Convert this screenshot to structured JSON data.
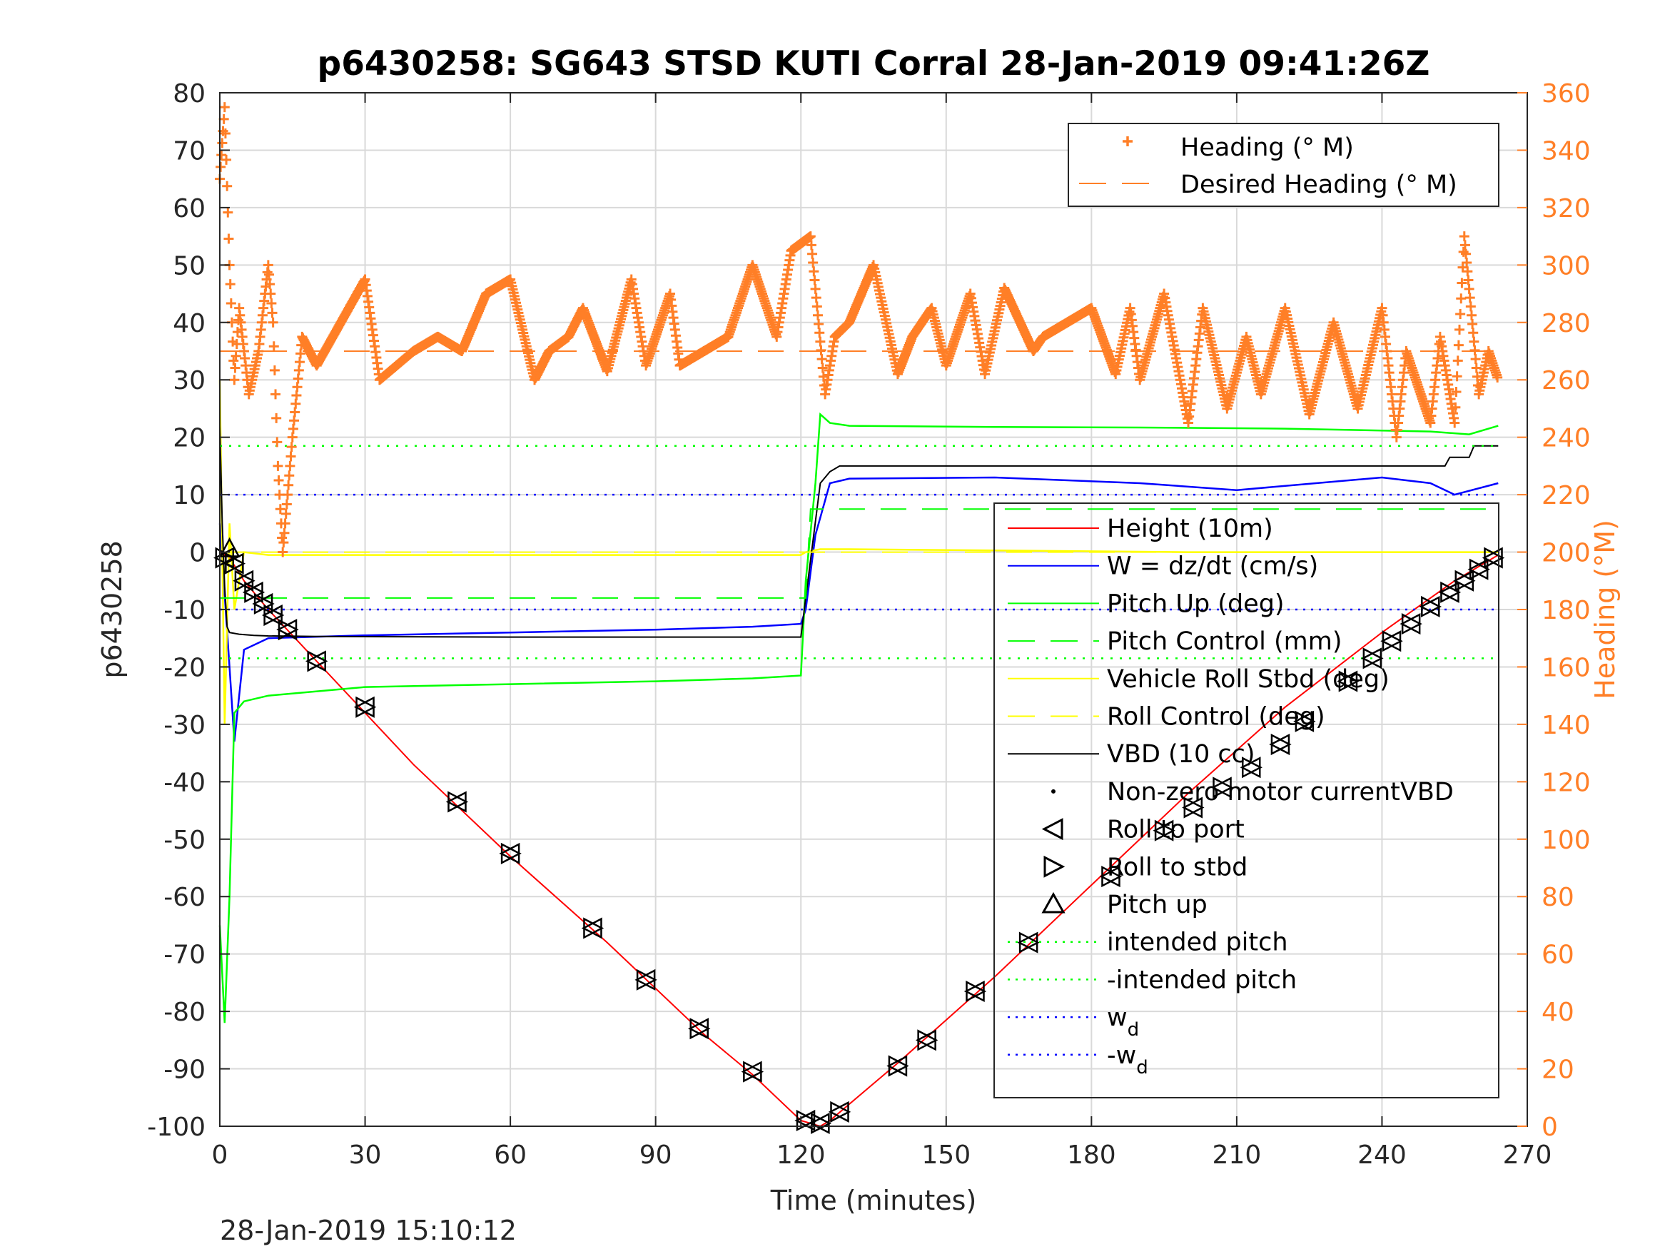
{
  "chart_data": {
    "type": "line",
    "title": "p6430258: SG643 STSD KUTI Corral 28-Jan-2019 09:41:26Z",
    "xlabel": "Time (minutes)",
    "ylabel": "p6430258",
    "y2label": "Heading (°M)",
    "footer": "28-Jan-2019 15:10:12",
    "xlim": [
      0,
      270
    ],
    "ylim": [
      -100,
      80
    ],
    "y2lim": [
      0,
      360
    ],
    "grid": true,
    "xticks": [
      "0",
      "30",
      "60",
      "90",
      "120",
      "150",
      "180",
      "210",
      "240",
      "270"
    ],
    "yticks": [
      "80",
      "70",
      "60",
      "50",
      "40",
      "30",
      "20",
      "10",
      "0",
      "-10",
      "-20",
      "-30",
      "-40",
      "-50",
      "-60",
      "-70",
      "-80",
      "-90",
      "-100"
    ],
    "y2ticks": [
      "360",
      "340",
      "320",
      "300",
      "280",
      "260",
      "240",
      "220",
      "200",
      "180",
      "160",
      "140",
      "120",
      "100",
      "80",
      "60",
      "40",
      "20",
      "0"
    ],
    "colors": {
      "heading": "#ff7f27",
      "height": "#ff0000",
      "w": "#0000ff",
      "pitch": "#00ff00",
      "roll": "#ffff00",
      "vbd": "#000000",
      "marker": "#000000",
      "grid": "#d9d9d9"
    },
    "legend_top": {
      "placement": "top-right",
      "entries": [
        "Heading (° M)",
        "Desired Heading (° M)"
      ]
    },
    "legend_main": {
      "placement": "right",
      "entries": [
        {
          "label": "Height (10m)"
        },
        {
          "label": "W = dz/dt (cm/s)"
        },
        {
          "label": "Pitch Up (deg)"
        },
        {
          "label": "Pitch Control (mm)"
        },
        {
          "label": "Vehicle Roll Stbd (deg)"
        },
        {
          "label": "Roll Control (deg)"
        },
        {
          "label": "VBD (10 cc)"
        },
        {
          "label": "Non-zero motor currentVBD"
        },
        {
          "label": "Roll to port"
        },
        {
          "label": "Roll to stbd"
        },
        {
          "label": "Pitch up"
        },
        {
          "label": "intended pitch"
        },
        {
          "label": "-intended pitch"
        },
        {
          "label": "w",
          "sub": "d"
        },
        {
          "label": "-w",
          "sub": "d"
        }
      ]
    },
    "series": [
      {
        "name": "Height (10m)",
        "x": [
          0,
          2,
          5,
          10,
          20,
          40,
          60,
          80,
          100,
          110,
          120,
          122,
          124,
          126,
          140,
          160,
          180,
          200,
          220,
          240,
          255,
          264
        ],
        "y": [
          0,
          -1,
          -5,
          -10,
          -19,
          -37,
          -53,
          -68,
          -84,
          -91,
          -99,
          -99.5,
          -100,
          -99,
          -89,
          -74,
          -58,
          -42,
          -27,
          -14,
          -5,
          -0.5
        ]
      },
      {
        "name": "W = dz/dt (cm/s)",
        "x": [
          0,
          2,
          3,
          5,
          10,
          30,
          60,
          90,
          110,
          120,
          121,
          123,
          126,
          130,
          160,
          190,
          210,
          240,
          250,
          255,
          264
        ],
        "y": [
          5,
          -20,
          -33,
          -17,
          -15,
          -14.5,
          -14,
          -13.5,
          -13,
          -12.5,
          -10,
          3,
          12,
          12.8,
          13,
          12,
          10.8,
          13,
          12,
          10,
          12
        ]
      },
      {
        "name": "Pitch Up (deg)",
        "x": [
          0,
          1,
          2,
          3,
          5,
          10,
          30,
          60,
          90,
          110,
          120,
          121,
          123,
          124,
          126,
          130,
          160,
          190,
          220,
          250,
          258,
          264
        ],
        "y": [
          -65,
          -82,
          -60,
          -28,
          -26,
          -25,
          -23.5,
          -23,
          -22.5,
          -22,
          -21.5,
          -5,
          12,
          24,
          22.5,
          22,
          21.8,
          21.7,
          21.5,
          21,
          20.5,
          22
        ]
      },
      {
        "name": "Vehicle Roll Stbd (deg)",
        "x": [
          0,
          1,
          2,
          3,
          5,
          10,
          60,
          120,
          121,
          124,
          130,
          200,
          264
        ],
        "y": [
          30,
          -30,
          5,
          -10,
          0,
          -0.5,
          -0.5,
          -0.5,
          0,
          0.5,
          0.5,
          0,
          0
        ]
      },
      {
        "name": "VBD (10 cc)",
        "x": [
          0,
          0.5,
          1,
          1.5,
          2,
          4,
          7,
          10,
          20,
          60,
          110,
          120,
          121,
          124,
          126,
          128,
          150,
          200,
          253,
          254,
          258,
          259,
          264
        ],
        "y": [
          22,
          5,
          -6,
          -13,
          -14,
          -14.3,
          -14.5,
          -14.6,
          -14.7,
          -14.8,
          -14.8,
          -14.8,
          -8,
          12,
          14,
          15,
          15,
          15,
          15,
          16.5,
          16.5,
          18.5,
          18.5
        ]
      },
      {
        "name": "Pitch Control (mm)",
        "x": [
          0,
          121,
          122,
          264
        ],
        "y": [
          -8,
          -8,
          7.5,
          7.5
        ]
      },
      {
        "name": "Roll Control (deg)",
        "x": [
          0,
          264
        ],
        "y": [
          0,
          0
        ]
      },
      {
        "name": "intended pitch",
        "x": [
          0,
          264
        ],
        "y": [
          18.5,
          18.5
        ]
      },
      {
        "name": "-intended pitch",
        "x": [
          0,
          264
        ],
        "y": [
          -18.5,
          -18.5
        ]
      },
      {
        "name": "w_d",
        "x": [
          0,
          264
        ],
        "y": [
          10,
          10
        ]
      },
      {
        "name": "-w_d",
        "x": [
          0,
          264
        ],
        "y": [
          -10,
          -10
        ]
      },
      {
        "name": "Desired Heading (° M)",
        "x": [
          0,
          264
        ],
        "y2": [
          270,
          270
        ]
      },
      {
        "name": "Heading (° M)",
        "x": [
          0,
          1,
          2,
          3,
          4,
          6,
          8,
          10,
          11,
          12,
          13,
          15,
          17,
          20,
          25,
          30,
          33,
          40,
          45,
          50,
          55,
          60,
          65,
          68,
          72,
          75,
          80,
          85,
          88,
          93,
          95,
          100,
          105,
          110,
          115,
          118,
          122,
          125,
          127,
          130,
          135,
          140,
          143,
          147,
          150,
          155,
          158,
          162,
          168,
          170,
          175,
          180,
          185,
          188,
          190,
          195,
          200,
          203,
          208,
          212,
          215,
          220,
          225,
          230,
          235,
          240,
          243,
          245,
          250,
          252,
          255,
          257,
          260,
          262,
          264
        ],
        "y2": [
          330,
          355,
          300,
          260,
          285,
          255,
          270,
          300,
          280,
          230,
          200,
          240,
          275,
          265,
          280,
          295,
          260,
          270,
          275,
          270,
          290,
          295,
          260,
          270,
          275,
          285,
          263,
          295,
          265,
          290,
          265,
          270,
          275,
          300,
          275,
          305,
          310,
          255,
          275,
          280,
          300,
          262,
          275,
          285,
          265,
          290,
          262,
          292,
          270,
          275,
          280,
          285,
          262,
          285,
          260,
          290,
          245,
          285,
          250,
          275,
          255,
          285,
          248,
          280,
          250,
          285,
          240,
          270,
          245,
          275,
          245,
          310,
          255,
          270,
          260
        ]
      }
    ],
    "markers": {
      "roll_to_port": {
        "x": [
          1,
          3,
          5,
          7,
          9,
          11,
          14,
          20,
          30,
          49,
          60,
          77,
          88,
          99,
          110,
          121,
          124,
          128,
          140,
          146,
          156,
          167,
          184,
          195,
          201,
          207,
          213,
          219,
          224,
          233,
          238,
          242,
          246,
          250,
          254,
          257,
          260,
          263
        ],
        "y": [
          -1,
          -2,
          -5,
          -7,
          -9,
          -11,
          -13.5,
          -19,
          -27,
          -43.5,
          -52.5,
          -65.5,
          -74.5,
          -83,
          -90.5,
          -99,
          -99.5,
          -97.5,
          -89.5,
          -85,
          -76.5,
          -68,
          -56.5,
          -48.5,
          -44.5,
          -41,
          -37.5,
          -33.5,
          -29.5,
          -22.5,
          -18.5,
          -15.5,
          -12.5,
          -9.5,
          -7,
          -5,
          -3,
          -1
        ]
      },
      "pitch_up": {
        "x": [
          2
        ],
        "y": [
          0.5
        ]
      }
    }
  }
}
